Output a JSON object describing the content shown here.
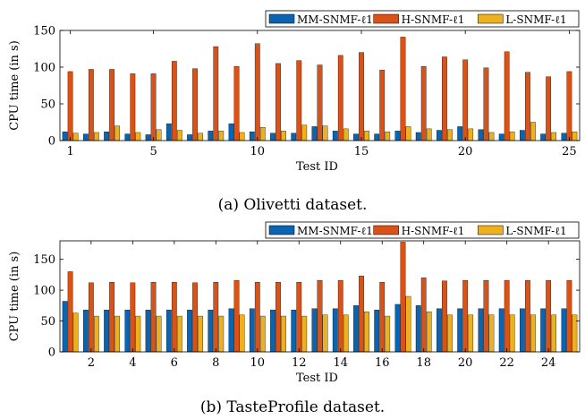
{
  "chart_data": [
    {
      "type": "bar",
      "caption": "(a) Olivetti dataset.",
      "xlabel": "Test ID",
      "ylabel": "CPU time (in s)",
      "ylim": [
        0,
        150
      ],
      "yticks": [
        0,
        50,
        100,
        150
      ],
      "xticks": [
        1,
        5,
        10,
        15,
        20,
        25
      ],
      "legend_position": "top-right",
      "grid": false,
      "categories": [
        1,
        2,
        3,
        4,
        5,
        6,
        7,
        8,
        9,
        10,
        11,
        12,
        13,
        14,
        15,
        16,
        17,
        18,
        19,
        20,
        21,
        22,
        23,
        24,
        25
      ],
      "series": [
        {
          "name": "MM-SNMF-ℓ1",
          "color": "#0b64b0",
          "values": [
            12,
            9,
            12,
            9,
            8,
            23,
            8,
            13,
            23,
            12,
            10,
            10,
            19,
            13,
            9,
            9,
            13,
            11,
            14,
            19,
            15,
            9,
            14,
            9,
            10
          ]
        },
        {
          "name": "H-SNMF-ℓ1",
          "color": "#d95319",
          "values": [
            94,
            97,
            97,
            91,
            91,
            108,
            98,
            128,
            101,
            132,
            105,
            109,
            103,
            116,
            120,
            96,
            141,
            101,
            114,
            110,
            99,
            121,
            93,
            87,
            94
          ]
        },
        {
          "name": "L-SNMF-ℓ1",
          "color": "#edb120",
          "values": [
            10,
            11,
            20,
            11,
            15,
            14,
            10,
            13,
            11,
            18,
            13,
            21,
            20,
            16,
            13,
            12,
            19,
            16,
            15,
            16,
            11,
            12,
            25,
            11,
            12
          ]
        }
      ]
    },
    {
      "type": "bar",
      "caption": "(b) TasteProfile dataset.",
      "xlabel": "Test ID",
      "ylabel": "CPU time (in s)",
      "ylim": [
        0,
        180
      ],
      "yticks": [
        0,
        50,
        100,
        150
      ],
      "xticks": [
        2,
        4,
        6,
        8,
        10,
        12,
        14,
        16,
        18,
        20,
        22,
        24
      ],
      "legend_position": "top-right",
      "grid": false,
      "categories": [
        1,
        2,
        3,
        4,
        5,
        6,
        7,
        8,
        9,
        10,
        11,
        12,
        13,
        14,
        15,
        16,
        17,
        18,
        19,
        20,
        21,
        22,
        23,
        24,
        25
      ],
      "series": [
        {
          "name": "MM-SNMF-ℓ1",
          "color": "#0b64b0",
          "values": [
            82,
            68,
            68,
            68,
            68,
            68,
            68,
            68,
            70,
            70,
            68,
            68,
            70,
            70,
            75,
            68,
            77,
            75,
            70,
            70,
            70,
            70,
            70,
            70,
            70
          ]
        },
        {
          "name": "H-SNMF-ℓ1",
          "color": "#d95319",
          "values": [
            130,
            112,
            113,
            112,
            113,
            113,
            112,
            113,
            116,
            113,
            113,
            113,
            116,
            116,
            123,
            113,
            178,
            120,
            115,
            116,
            116,
            116,
            116,
            116,
            116
          ]
        },
        {
          "name": "L-SNMF-ℓ1",
          "color": "#edb120",
          "values": [
            63,
            58,
            58,
            58,
            58,
            58,
            58,
            58,
            60,
            58,
            58,
            58,
            60,
            60,
            65,
            58,
            90,
            65,
            60,
            60,
            60,
            60,
            60,
            60,
            60
          ]
        }
      ]
    }
  ]
}
